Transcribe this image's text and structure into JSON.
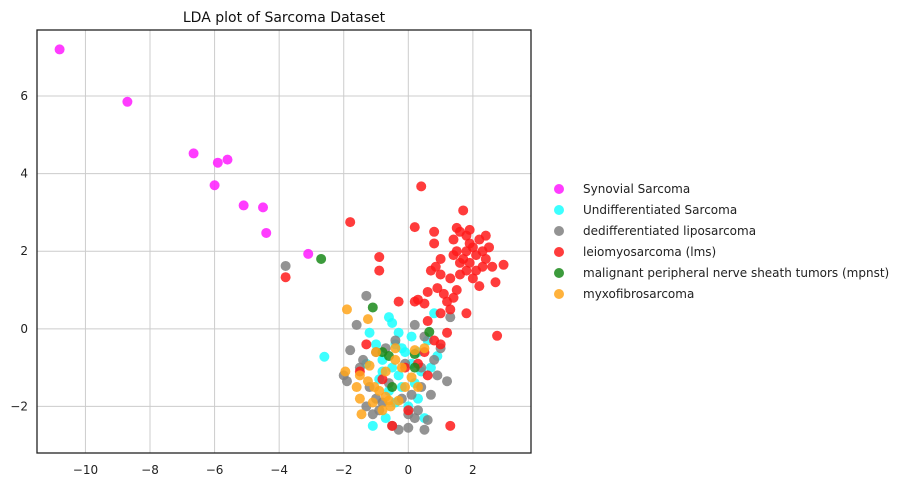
{
  "chart_data": {
    "type": "scatter",
    "title": "LDA plot of Sarcoma Dataset",
    "xlabel": "",
    "ylabel": "",
    "xlim": [
      -11.5,
      3.8
    ],
    "ylim": [
      -3.2,
      7.7
    ],
    "xticks": [
      -10,
      -8,
      -6,
      -4,
      -2,
      0,
      2
    ],
    "yticks": [
      -2,
      0,
      2,
      4,
      6
    ],
    "grid": true,
    "legend_position": "right",
    "series": [
      {
        "name": "Synovial Sarcoma",
        "color": "#ff1aff",
        "points": [
          [
            -10.8,
            7.2
          ],
          [
            -8.7,
            5.85
          ],
          [
            -6.65,
            4.52
          ],
          [
            -6.0,
            3.7
          ],
          [
            -5.9,
            4.28
          ],
          [
            -5.6,
            4.36
          ],
          [
            -5.1,
            3.18
          ],
          [
            -4.5,
            3.13
          ],
          [
            -4.4,
            2.47
          ],
          [
            -3.1,
            1.93
          ]
        ]
      },
      {
        "name": "Undifferentiated Sarcoma",
        "color": "#1affff",
        "points": [
          [
            -2.6,
            -0.72
          ],
          [
            -1.2,
            -0.1
          ],
          [
            -0.6,
            0.3
          ],
          [
            -0.5,
            0.15
          ],
          [
            -0.3,
            -0.1
          ],
          [
            0.8,
            0.4
          ],
          [
            -1.0,
            -0.4
          ],
          [
            -0.8,
            -0.8
          ],
          [
            -0.5,
            -1.0
          ],
          [
            -0.3,
            -1.2
          ],
          [
            -0.1,
            -0.6
          ],
          [
            0.1,
            -0.9
          ],
          [
            0.2,
            -1.4
          ],
          [
            0.4,
            -1.1
          ],
          [
            -0.9,
            -1.3
          ],
          [
            -0.6,
            -1.6
          ],
          [
            -0.4,
            -1.9
          ],
          [
            0.0,
            -2.0
          ],
          [
            0.3,
            -1.8
          ],
          [
            0.5,
            -2.3
          ],
          [
            -0.7,
            -2.3
          ],
          [
            -1.1,
            -2.5
          ],
          [
            -0.2,
            -0.5
          ],
          [
            0.6,
            -0.3
          ],
          [
            0.9,
            -0.7
          ],
          [
            -1.3,
            -0.9
          ],
          [
            -0.4,
            -0.4
          ],
          [
            0.1,
            -0.2
          ],
          [
            -0.8,
            -1.1
          ],
          [
            0.3,
            -0.6
          ],
          [
            -0.2,
            -1.5
          ],
          [
            0.7,
            -1.0
          ]
        ]
      },
      {
        "name": "dedifferentiated liposarcoma",
        "color": "#808080",
        "points": [
          [
            -3.8,
            1.62
          ],
          [
            -1.3,
            0.85
          ],
          [
            -1.6,
            0.1
          ],
          [
            -1.8,
            -0.55
          ],
          [
            -2.0,
            -1.2
          ],
          [
            -1.9,
            -1.35
          ],
          [
            -1.4,
            -0.8
          ],
          [
            -1.2,
            -1.5
          ],
          [
            -1.0,
            -1.8
          ],
          [
            -1.1,
            -2.2
          ],
          [
            -0.9,
            -2.1
          ],
          [
            -0.5,
            -2.5
          ],
          [
            -0.3,
            -2.6
          ],
          [
            0.0,
            -2.55
          ],
          [
            0.2,
            -2.3
          ],
          [
            0.5,
            -2.6
          ],
          [
            0.6,
            -2.35
          ],
          [
            0.3,
            -2.1
          ],
          [
            0.1,
            -1.7
          ],
          [
            0.4,
            -1.5
          ],
          [
            0.9,
            -1.2
          ],
          [
            1.2,
            -1.35
          ],
          [
            0.8,
            -0.8
          ],
          [
            1.0,
            -0.5
          ],
          [
            1.3,
            0.3
          ],
          [
            0.5,
            -0.2
          ],
          [
            0.2,
            0.1
          ],
          [
            -0.4,
            -0.3
          ],
          [
            -0.7,
            -0.5
          ],
          [
            -1.5,
            -1.0
          ],
          [
            -0.6,
            -1.4
          ],
          [
            -0.2,
            -1.8
          ],
          [
            0.0,
            -2.2
          ],
          [
            -0.8,
            -1.9
          ],
          [
            -1.3,
            -2.0
          ],
          [
            0.7,
            -1.7
          ],
          [
            0.4,
            -1.0
          ],
          [
            -0.1,
            -0.9
          ],
          [
            -1.0,
            -0.6
          ]
        ]
      },
      {
        "name": "leiomyosarcoma (lms)",
        "color": "#ff1a1a",
        "points": [
          [
            -3.8,
            1.33
          ],
          [
            -1.8,
            2.75
          ],
          [
            -0.9,
            1.85
          ],
          [
            -0.9,
            1.5
          ],
          [
            0.2,
            2.62
          ],
          [
            0.4,
            3.67
          ],
          [
            0.8,
            2.5
          ],
          [
            0.8,
            2.2
          ],
          [
            0.85,
            1.6
          ],
          [
            0.9,
            1.05
          ],
          [
            0.6,
            0.95
          ],
          [
            0.3,
            0.75
          ],
          [
            0.2,
            0.7
          ],
          [
            -0.3,
            0.7
          ],
          [
            0.5,
            0.65
          ],
          [
            0.7,
            1.5
          ],
          [
            1.0,
            1.4
          ],
          [
            1.1,
            0.9
          ],
          [
            1.2,
            0.7
          ],
          [
            1.3,
            0.5
          ],
          [
            1.4,
            0.8
          ],
          [
            1.5,
            1.0
          ],
          [
            1.6,
            1.4
          ],
          [
            1.7,
            1.8
          ],
          [
            1.8,
            2.0
          ],
          [
            1.9,
            2.2
          ],
          [
            2.0,
            2.1
          ],
          [
            2.1,
            1.9
          ],
          [
            2.2,
            2.3
          ],
          [
            2.3,
            1.6
          ],
          [
            2.4,
            1.8
          ],
          [
            2.5,
            2.1
          ],
          [
            2.6,
            1.6
          ],
          [
            2.2,
            1.1
          ],
          [
            2.0,
            1.3
          ],
          [
            1.8,
            1.5
          ],
          [
            1.6,
            1.7
          ],
          [
            1.5,
            2.0
          ],
          [
            1.4,
            2.3
          ],
          [
            1.6,
            2.5
          ],
          [
            1.8,
            2.4
          ],
          [
            1.9,
            1.7
          ],
          [
            2.1,
            1.5
          ],
          [
            2.3,
            2.0
          ],
          [
            1.7,
            3.05
          ],
          [
            2.95,
            1.65
          ],
          [
            2.7,
            1.2
          ],
          [
            1.8,
            0.4
          ],
          [
            1.0,
            0.4
          ],
          [
            0.6,
            0.2
          ],
          [
            0.8,
            -0.3
          ],
          [
            1.0,
            -0.4
          ],
          [
            1.2,
            -0.1
          ],
          [
            0.5,
            -0.6
          ],
          [
            0.3,
            -0.9
          ],
          [
            0.6,
            -1.2
          ],
          [
            -0.1,
            -1.0
          ],
          [
            -1.3,
            -0.4
          ],
          [
            -1.5,
            -1.1
          ],
          [
            -0.8,
            -1.3
          ],
          [
            1.3,
            -2.5
          ],
          [
            2.75,
            -0.18
          ],
          [
            -0.5,
            -2.5
          ],
          [
            0.0,
            -2.1
          ],
          [
            1.5,
            2.6
          ],
          [
            1.4,
            1.9
          ],
          [
            2.4,
            2.4
          ],
          [
            1.3,
            1.3
          ],
          [
            1.0,
            1.8
          ],
          [
            1.9,
            2.55
          ]
        ]
      },
      {
        "name": "malignant peripheral nerve sheath tumors (mpnst)",
        "color": "#1a8a1a",
        "points": [
          [
            -2.7,
            1.8
          ],
          [
            -1.1,
            0.55
          ],
          [
            0.65,
            -0.08
          ],
          [
            -0.8,
            -0.6
          ],
          [
            -0.6,
            -0.7
          ],
          [
            0.2,
            -0.65
          ],
          [
            0.2,
            -1.0
          ],
          [
            -0.5,
            -1.5
          ]
        ]
      },
      {
        "name": "myxofibrosarcoma",
        "color": "#ffa51a",
        "points": [
          [
            -1.9,
            0.5
          ],
          [
            -1.25,
            0.25
          ],
          [
            -1.95,
            -1.1
          ],
          [
            -1.5,
            -1.2
          ],
          [
            -1.25,
            -1.35
          ],
          [
            -1.05,
            -1.5
          ],
          [
            -0.9,
            -1.6
          ],
          [
            -0.7,
            -1.75
          ],
          [
            -0.6,
            -1.85
          ],
          [
            -0.55,
            -2.0
          ],
          [
            -0.3,
            -1.85
          ],
          [
            -0.1,
            -1.5
          ],
          [
            0.1,
            -1.25
          ],
          [
            0.2,
            -0.55
          ],
          [
            0.5,
            -0.5
          ],
          [
            -0.2,
            -1.0
          ],
          [
            -0.4,
            -0.8
          ],
          [
            -0.7,
            -1.1
          ],
          [
            -1.0,
            -0.6
          ],
          [
            -1.2,
            -0.95
          ],
          [
            -1.45,
            -2.2
          ],
          [
            -1.5,
            -1.8
          ],
          [
            -1.1,
            -1.9
          ],
          [
            -0.8,
            -2.1
          ],
          [
            -0.4,
            -0.5
          ],
          [
            -1.6,
            -1.5
          ],
          [
            0.3,
            -1.5
          ]
        ]
      }
    ]
  }
}
